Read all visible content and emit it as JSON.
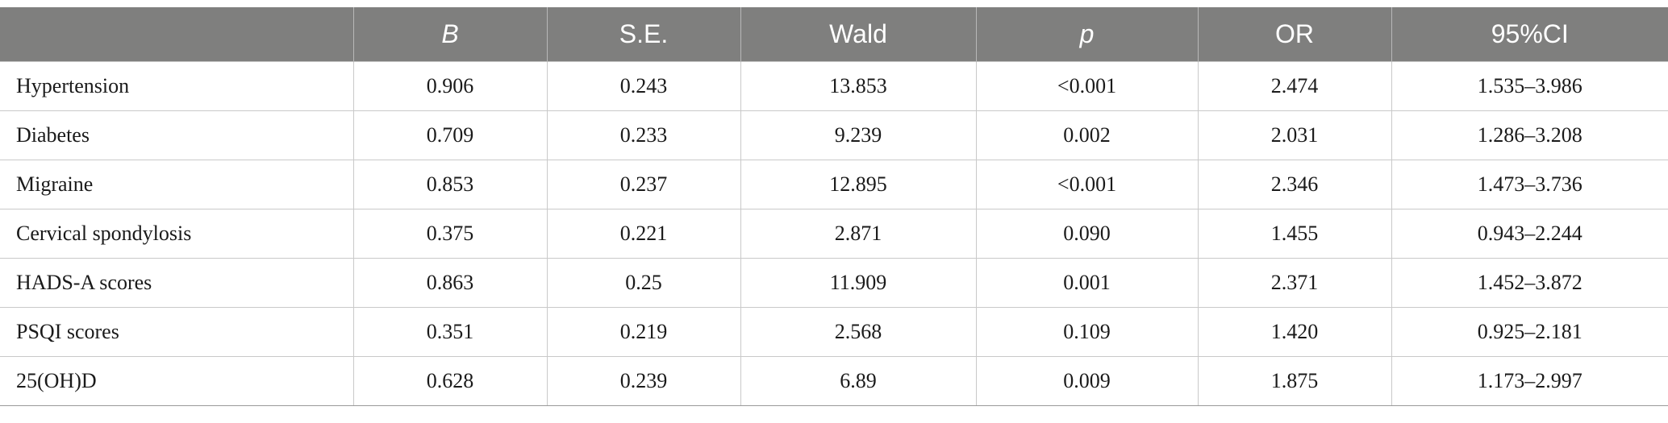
{
  "table": {
    "headers": [
      "",
      "B",
      "S.E.",
      "Wald",
      "p",
      "OR",
      "95%CI"
    ],
    "rows": [
      [
        "Hypertension",
        "0.906",
        "0.243",
        "13.853",
        "<0.001",
        "2.474",
        "1.535–3.986"
      ],
      [
        "Diabetes",
        "0.709",
        "0.233",
        "9.239",
        "0.002",
        "2.031",
        "1.286–3.208"
      ],
      [
        "Migraine",
        "0.853",
        "0.237",
        "12.895",
        "<0.001",
        "2.346",
        "1.473–3.736"
      ],
      [
        "Cervical spondylosis",
        "0.375",
        "0.221",
        "2.871",
        "0.090",
        "1.455",
        "0.943–2.244"
      ],
      [
        "HADS-A scores",
        "0.863",
        "0.25",
        "11.909",
        "0.001",
        "2.371",
        "1.452–3.872"
      ],
      [
        "PSQI scores",
        "0.351",
        "0.219",
        "2.568",
        "0.109",
        "1.420",
        "0.925–2.181"
      ],
      [
        "25(OH)D",
        "0.628",
        "0.239",
        "6.89",
        "0.009",
        "1.875",
        "1.173–2.997"
      ]
    ]
  },
  "colors": {
    "header_bg": "#7f7f7e",
    "header_text": "#ffffff",
    "grid": "#c9c9c9",
    "body_text": "#1a1a1a"
  }
}
